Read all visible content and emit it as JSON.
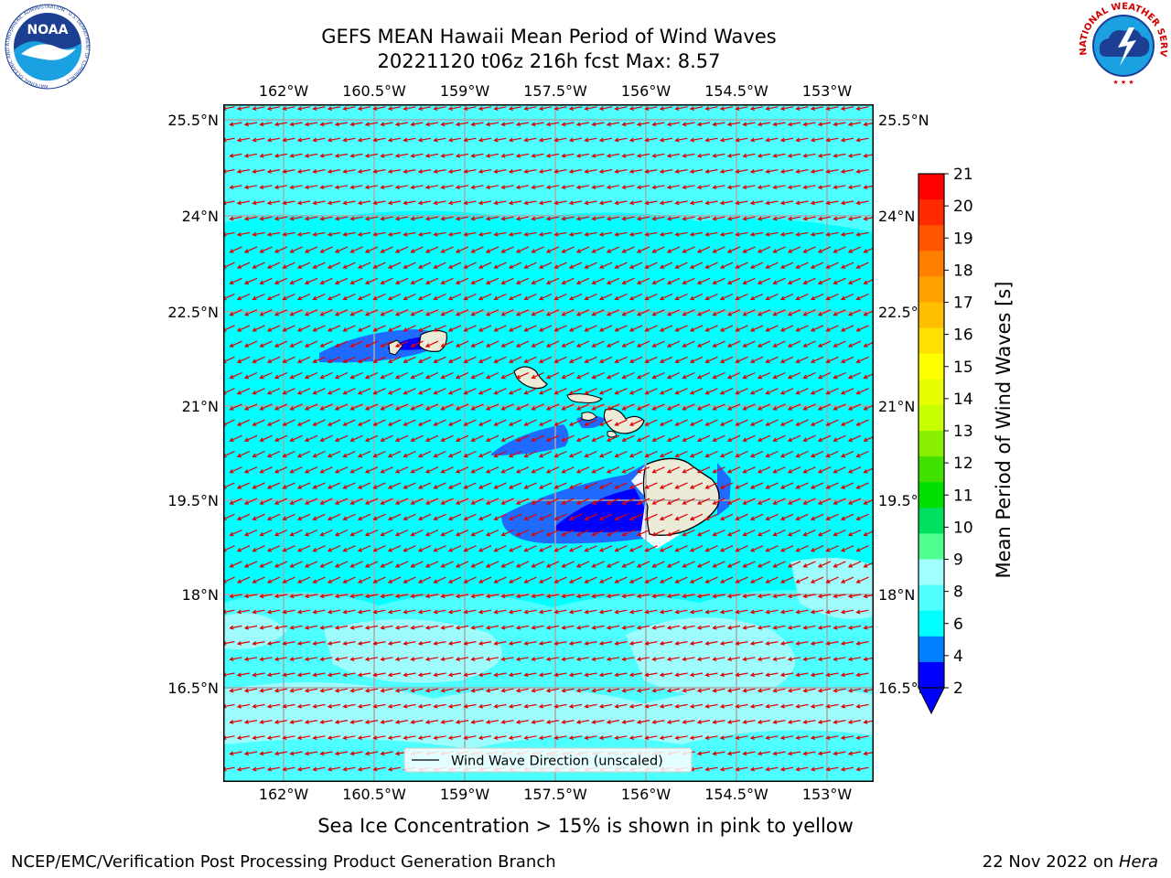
{
  "title": {
    "line1": "GEFS MEAN Hawaii Mean Period of Wind Waves",
    "line2": "20221120 t06z 216h fcst   Max: 8.57"
  },
  "map": {
    "lon_labels": [
      "162°W",
      "160.5°W",
      "159°W",
      "157.5°W",
      "156°W",
      "154.5°W",
      "153°W"
    ],
    "lat_labels": [
      "25.5°N",
      "24°N",
      "22.5°N",
      "21°N",
      "19.5°N",
      "18°N",
      "16.5°N"
    ],
    "legend_label": "Wind Wave Direction (unscaled)",
    "arrow_color": "#e00000"
  },
  "colorbar": {
    "title": "Mean Period of Wind Waves [s]",
    "ticks": [
      "21",
      "20",
      "19",
      "18",
      "17",
      "16",
      "15",
      "14",
      "13",
      "12",
      "11",
      "10",
      "9",
      "8",
      "6",
      "4",
      "2"
    ],
    "colors_top_to_bottom": [
      "#ff0000",
      "#ff2a00",
      "#ff5500",
      "#ff7f00",
      "#ffa200",
      "#ffbf00",
      "#ffe000",
      "#ffff00",
      "#e6ff00",
      "#c8ff00",
      "#88f000",
      "#40e000",
      "#00e000",
      "#00e060",
      "#50ff90",
      "#a0ffff",
      "#50ffff",
      "#00ffff",
      "#0080ff",
      "#0000ff"
    ],
    "under_color": "#0000ff"
  },
  "note": "Sea Ice Concentration > 15% is shown in pink to yellow",
  "footer": {
    "left": "NCEP/EMC/Verification Post Processing Product Generation Branch",
    "date": "22 Nov 2022 on ",
    "host": "Hera"
  },
  "logos": {
    "noaa": "NOAA",
    "noaa_ring": "NATIONAL OCEANIC AND ATMOSPHERIC ADMINISTRATION · U.S. DEPARTMENT OF COMMERCE",
    "nws_ring": "NATIONAL WEATHER SERVICE"
  }
}
